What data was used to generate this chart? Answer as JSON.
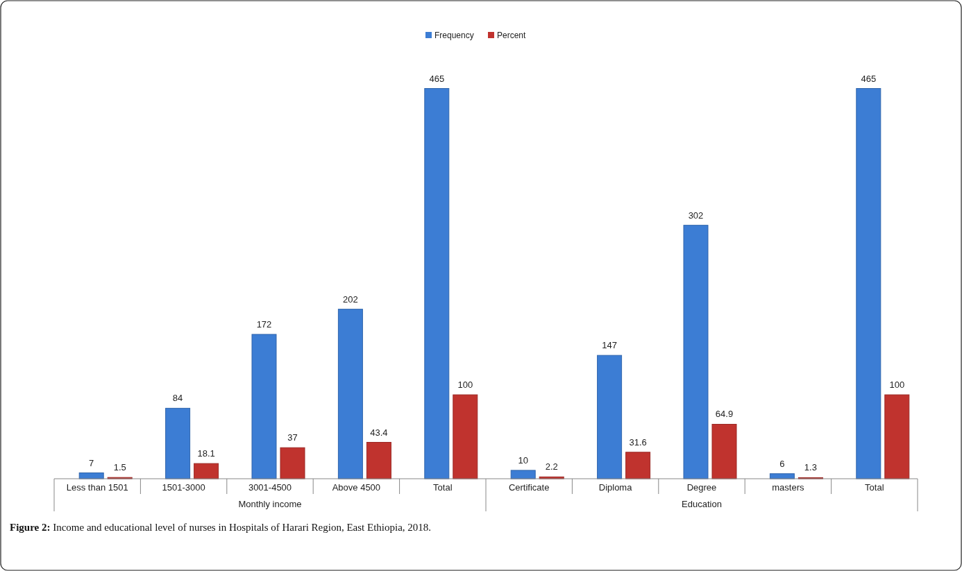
{
  "chart_data": {
    "type": "bar",
    "title": "Figure 2: Income and educational level of nurses in Hospitals of Harari Region, East Ethiopia, 2018.",
    "categories": [
      "Less than 1501",
      "1501-3000",
      "3001-4500",
      "Above 4500",
      "Total",
      "Certificate",
      "Diploma",
      "Degree",
      "masters",
      "Total"
    ],
    "series": [
      {
        "name": "Frequency",
        "color": "#3c7dd4",
        "values": [
          7,
          84,
          172,
          202,
          465,
          10,
          147,
          302,
          6,
          465
        ]
      },
      {
        "name": "Percent",
        "color": "#c0332e",
        "values": [
          1.5,
          18.1,
          37,
          43.4,
          100,
          2.2,
          31.6,
          64.9,
          1.3,
          100
        ]
      }
    ],
    "annotations": [
      "Monthly income",
      "Education"
    ],
    "data_labels": true,
    "legend": "top"
  }
}
